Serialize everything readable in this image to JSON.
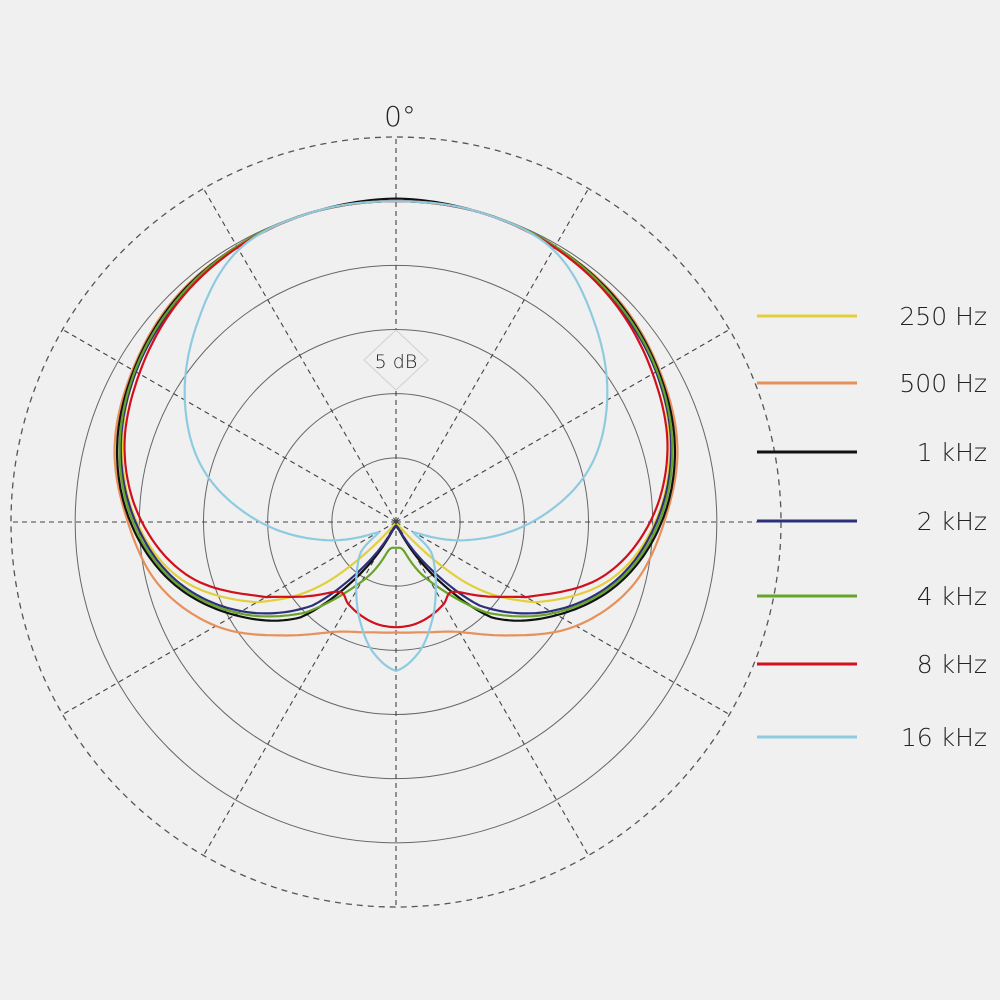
{
  "chart_data": {
    "type": "polar-line",
    "angle_unit": "degrees",
    "angle_label": "0°",
    "radial_unit": "dB",
    "ring_step_db": 5,
    "ring_label": "5 dB",
    "radial_range_db": [
      -25,
      5
    ],
    "grid": true,
    "spoke_step_deg": 30,
    "symmetric": true,
    "legend_placement": "right",
    "series": [
      {
        "name": "250 Hz",
        "color": "#e3cf3a",
        "angles": [
          0,
          15,
          30,
          45,
          60,
          75,
          90,
          105,
          120,
          130,
          140,
          155,
          180
        ],
        "db": [
          0,
          0,
          -0.2,
          -0.8,
          -1.6,
          -2.9,
          -4.8,
          -7.7,
          -12.5,
          -17.2,
          -24.1,
          -24.6,
          -24.7
        ]
      },
      {
        "name": "500 Hz",
        "color": "#e8905a",
        "angles": [
          0,
          15,
          30,
          45,
          60,
          75,
          90,
          105,
          120,
          135,
          150,
          165,
          180
        ],
        "db": [
          0,
          0,
          -0.2,
          -0.5,
          -1.3,
          -2.3,
          -4.1,
          -5.9,
          -8.8,
          -12.5,
          -15.1,
          -16.1,
          -16.4
        ]
      },
      {
        "name": "1 kHz",
        "color": "#111111",
        "angles": [
          0,
          15,
          30,
          45,
          60,
          75,
          90,
          105,
          120,
          135,
          145,
          155,
          165,
          180
        ],
        "db": [
          0.2,
          0,
          -0.2,
          -0.6,
          -1.4,
          -2.5,
          -4.3,
          -6.9,
          -10.5,
          -14.5,
          -19.9,
          -23.8,
          -24.5,
          -24.7
        ]
      },
      {
        "name": "2 kHz",
        "color": "#2e2f7a",
        "angles": [
          0,
          15,
          30,
          45,
          60,
          75,
          90,
          105,
          120,
          135,
          145,
          155,
          165,
          180
        ],
        "db": [
          0,
          0,
          -0.2,
          -0.8,
          -1.6,
          -2.8,
          -4.7,
          -7.3,
          -11.1,
          -15.8,
          -21.1,
          -24.1,
          -24.6,
          -24.7
        ]
      },
      {
        "name": "4 kHz",
        "color": "#66a42a",
        "angles": [
          0,
          15,
          30,
          45,
          60,
          75,
          90,
          105,
          120,
          135,
          145,
          155,
          165,
          180
        ],
        "db": [
          0,
          0,
          -0.2,
          -0.7,
          -1.5,
          -2.7,
          -4.5,
          -7.1,
          -10.8,
          -15,
          -18.4,
          -20.7,
          -22.7,
          -23
        ]
      },
      {
        "name": "8 kHz",
        "color": "#d0101c",
        "angles": [
          0,
          15,
          30,
          45,
          60,
          75,
          90,
          105,
          120,
          130,
          141,
          150,
          160,
          170,
          180
        ],
        "db": [
          0,
          0,
          -0.3,
          -0.9,
          -1.9,
          -3.1,
          -5.2,
          -8.4,
          -13.3,
          -16,
          -18,
          -17.6,
          -17.2,
          -16.9,
          -16.8
        ]
      },
      {
        "name": "16 kHz",
        "color": "#8fcbe0",
        "angles": [
          0,
          15,
          30,
          45,
          60,
          75,
          90,
          105,
          120,
          130,
          140,
          150,
          160,
          170,
          180
        ],
        "db": [
          0,
          0,
          -0.5,
          -3.1,
          -6,
          -9.5,
          -14.4,
          -19.5,
          -23.4,
          -21.5,
          -20.3,
          -18.8,
          -16.8,
          -14.7,
          -13.4
        ]
      }
    ]
  }
}
